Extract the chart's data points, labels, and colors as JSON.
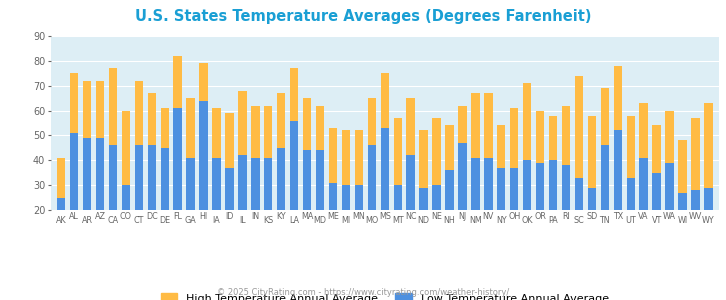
{
  "title": "U.S. States Temperature Averages (Degrees Farenheit)",
  "title_color": "#1a9fd4",
  "footer": "© 2025 CityRating.com - https://www.cityrating.com/weather-history/",
  "footer_color": "#999999",
  "plot_bg_color": "#ddeef5",
  "grid_color": "#ffffff",
  "bar_color_high": "#ffbb44",
  "bar_color_low": "#4d90e0",
  "legend_high": "High Temperature Annual Average",
  "legend_low": "Low Temperature Annual Average",
  "ylim": [
    20,
    90
  ],
  "yticks": [
    20,
    30,
    40,
    50,
    60,
    70,
    80,
    90
  ],
  "states": [
    "AK",
    "AL",
    "AR",
    "AZ",
    "CA",
    "CO",
    "CT",
    "DC",
    "DE",
    "FL",
    "GA",
    "HI",
    "IA",
    "ID",
    "IL",
    "IN",
    "KS",
    "KY",
    "LA",
    "MA",
    "MD",
    "ME",
    "MI",
    "MN",
    "MO",
    "MS",
    "MT",
    "NC",
    "ND",
    "NE",
    "NH",
    "NJ",
    "NM",
    "NV",
    "NY",
    "OH",
    "OK",
    "OR",
    "PA",
    "RI",
    "SC",
    "SD",
    "TN",
    "TX",
    "UT",
    "VA",
    "VT",
    "WA",
    "WI",
    "WV",
    "WY"
  ],
  "high": [
    41,
    75,
    72,
    72,
    77,
    60,
    72,
    67,
    61,
    82,
    65,
    79,
    61,
    59,
    68,
    62,
    62,
    67,
    77,
    65,
    62,
    53,
    52,
    52,
    65,
    75,
    57,
    65,
    52,
    57,
    54,
    62,
    67,
    67,
    54,
    61,
    71,
    60,
    58,
    62,
    74,
    58,
    69,
    78,
    58,
    63,
    54,
    60,
    48,
    57,
    63
  ],
  "low": [
    25,
    51,
    49,
    49,
    46,
    30,
    46,
    46,
    45,
    61,
    41,
    64,
    41,
    37,
    42,
    41,
    41,
    45,
    56,
    44,
    44,
    31,
    30,
    30,
    46,
    53,
    30,
    42,
    29,
    30,
    36,
    47,
    41,
    41,
    37,
    37,
    40,
    39,
    40,
    38,
    33,
    29,
    46,
    52,
    33,
    41,
    35,
    39,
    27,
    28,
    29
  ]
}
